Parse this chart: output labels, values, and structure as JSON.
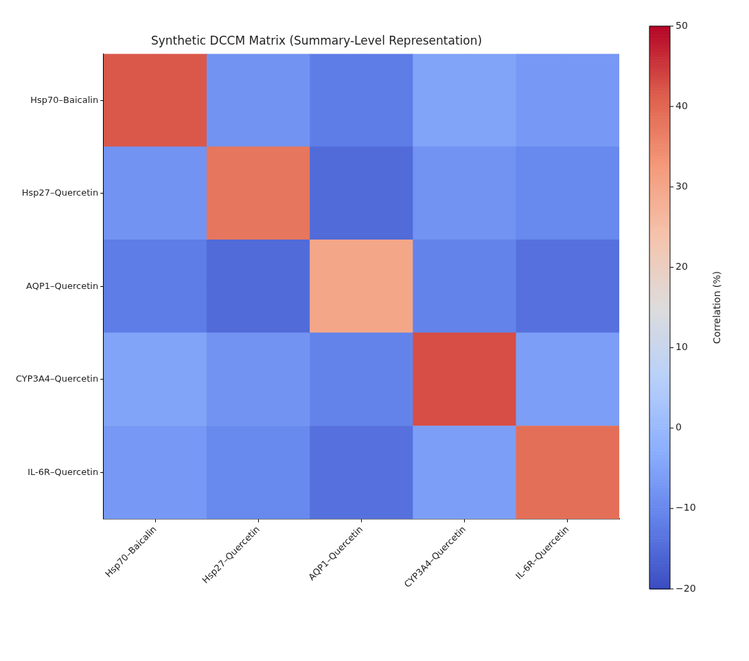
{
  "chart_data": {
    "type": "heatmap",
    "title": "Synthetic DCCM Matrix (Summary-Level Representation)",
    "categories": [
      "Hsp70–Baicalin",
      "Hsp27–Quercetin",
      "AQP1–Quercetin",
      "CYP3A4–Quercetin",
      "IL-6R–Quercetin"
    ],
    "y_categories": [
      "Hsp70–Baicalin",
      "Hsp27–Quercetin",
      "AQP1–Quercetin",
      "CYP3A4–Quercetin",
      "IL-6R–Quercetin"
    ],
    "cells": [
      [
        42,
        -8,
        -12,
        -5,
        -7
      ],
      [
        -8,
        38,
        -15,
        -8,
        -10
      ],
      [
        -12,
        -15,
        30,
        -11,
        -14
      ],
      [
        -5,
        -8,
        -11,
        43,
        -6
      ],
      [
        -7,
        -10,
        -14,
        -6,
        39
      ]
    ],
    "clim": [
      -20,
      50
    ],
    "cticks": [
      {
        "value": -20,
        "label": "−20"
      },
      {
        "value": -10,
        "label": "−10"
      },
      0,
      10,
      20,
      30,
      40,
      50
    ],
    "clabel": "Correlation (%)",
    "grid": true
  }
}
